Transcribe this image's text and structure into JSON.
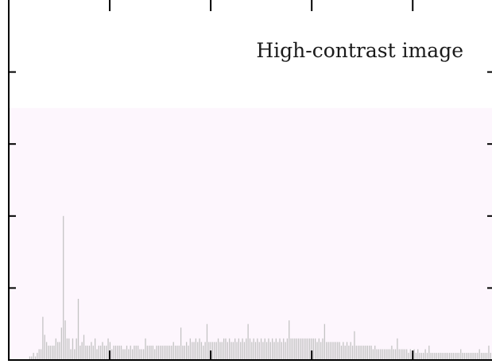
{
  "chart_data": {
    "type": "bar",
    "title": "High-contrast image",
    "xlabel": "",
    "ylabel": "",
    "tick_labels_shown": false,
    "xlim": [
      0,
      256
    ],
    "ylim": [
      0,
      100
    ],
    "highlight_band": {
      "from": 0,
      "to": 70
    },
    "grid": false,
    "legend": "none",
    "x_major_ticks": [
      0,
      53.5,
      107,
      160.5,
      214
    ],
    "y_major_ticks": [
      20,
      40,
      60,
      80
    ],
    "colors": {
      "bar": "#c3c3c3",
      "band": "#fdf6fd",
      "axis": "#000000",
      "background": "#ffffff"
    },
    "values": [
      70,
      0,
      0,
      0,
      0,
      0,
      0,
      0,
      0,
      0,
      0,
      1,
      1,
      2,
      1,
      2,
      3,
      3,
      12,
      7,
      5,
      4,
      4,
      4,
      4,
      6,
      5,
      5,
      9,
      40,
      11,
      6,
      6,
      3,
      6,
      3,
      6,
      17,
      4,
      5,
      7,
      4,
      4,
      4,
      5,
      4,
      6,
      3,
      4,
      4,
      5,
      4,
      4,
      6,
      5,
      3,
      4,
      4,
      4,
      4,
      4,
      3,
      3,
      4,
      3,
      4,
      3,
      4,
      4,
      4,
      3,
      3,
      3,
      6,
      4,
      4,
      4,
      4,
      3,
      4,
      4,
      4,
      4,
      4,
      4,
      4,
      4,
      4,
      5,
      4,
      4,
      4,
      9,
      4,
      4,
      5,
      4,
      6,
      5,
      5,
      6,
      5,
      6,
      5,
      4,
      5,
      10,
      5,
      5,
      5,
      5,
      5,
      6,
      5,
      5,
      6,
      6,
      5,
      6,
      5,
      5,
      6,
      5,
      6,
      5,
      6,
      5,
      6,
      10,
      6,
      5,
      6,
      5,
      6,
      5,
      6,
      5,
      6,
      5,
      6,
      5,
      6,
      5,
      6,
      5,
      6,
      5,
      6,
      5,
      6,
      11,
      6,
      6,
      6,
      6,
      6,
      6,
      6,
      6,
      6,
      6,
      6,
      6,
      6,
      6,
      5,
      6,
      5,
      6,
      10,
      5,
      5,
      5,
      5,
      5,
      5,
      5,
      5,
      4,
      5,
      4,
      5,
      4,
      5,
      4,
      8,
      4,
      4,
      4,
      4,
      4,
      4,
      4,
      4,
      4,
      3,
      4,
      3,
      3,
      3,
      3,
      3,
      3,
      3,
      3,
      4,
      3,
      3,
      6,
      3,
      3,
      3,
      3,
      3,
      2,
      3,
      2,
      3,
      2,
      3,
      2,
      2,
      2,
      3,
      2,
      4,
      2,
      2,
      2,
      2,
      2,
      2,
      2,
      2,
      2,
      2,
      2,
      2,
      2,
      2,
      2,
      2,
      3,
      2,
      2,
      2,
      2,
      2,
      2,
      2,
      2,
      2,
      3,
      2,
      2,
      2,
      2,
      4,
      2
    ]
  }
}
